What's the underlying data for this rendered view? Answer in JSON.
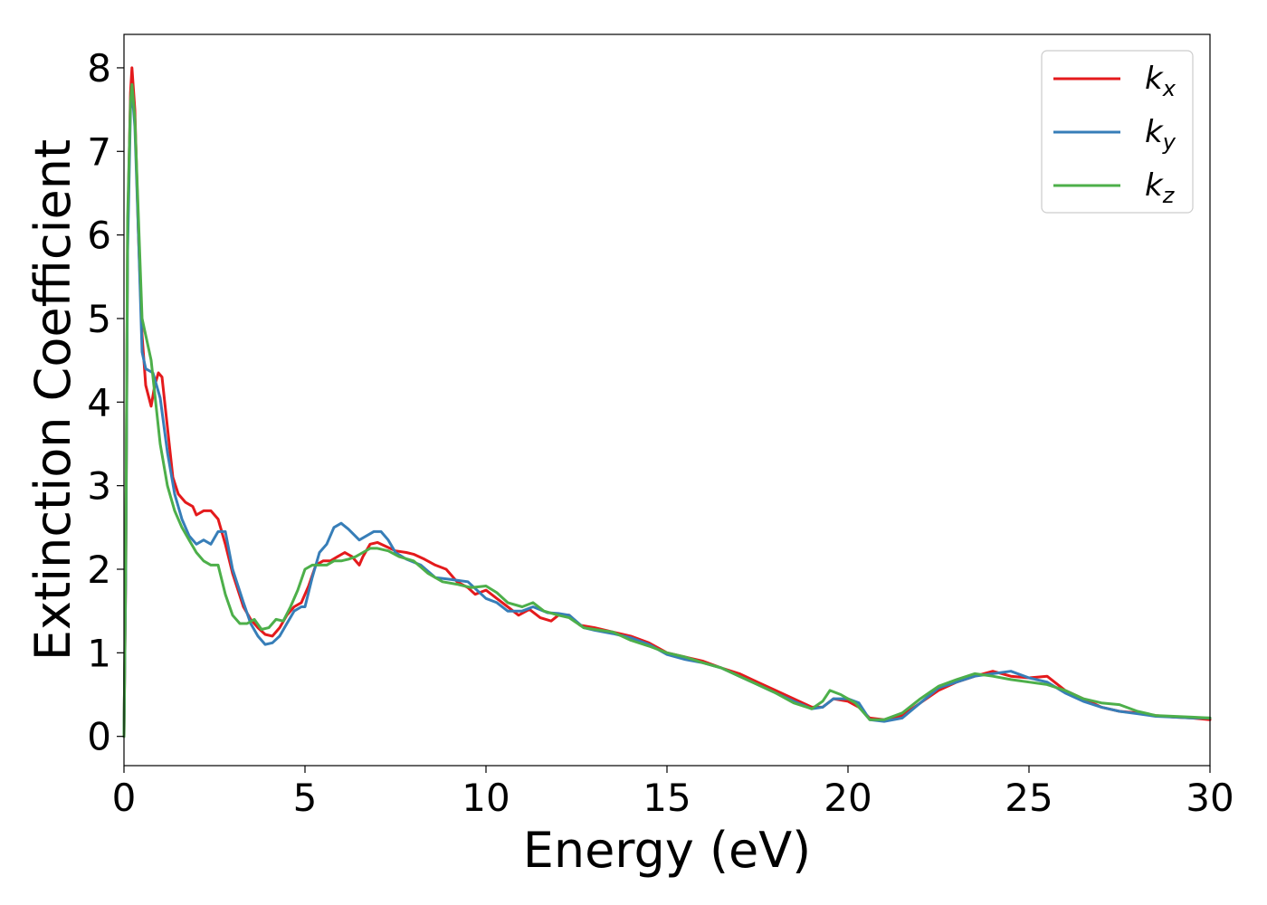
{
  "chart_data": {
    "type": "line",
    "xlabel": "Energy (eV)",
    "ylabel": "Extinction Coefficient",
    "xlim": [
      0,
      30
    ],
    "ylim": [
      -0.35,
      8.4
    ],
    "xticks": [
      "0",
      "5",
      "10",
      "15",
      "20",
      "25",
      "30"
    ],
    "yticks": [
      "0",
      "1",
      "2",
      "3",
      "4",
      "5",
      "6",
      "7",
      "8"
    ],
    "grid": false,
    "legend_position": "top-right",
    "series": [
      {
        "name": "k_x",
        "legend_main": "k",
        "legend_sub": "x",
        "color": "#e41a1c",
        "points": [
          [
            0,
            0
          ],
          [
            0.05,
            2.0
          ],
          [
            0.1,
            6.0
          ],
          [
            0.18,
            7.7
          ],
          [
            0.22,
            8.0
          ],
          [
            0.3,
            7.5
          ],
          [
            0.4,
            6.0
          ],
          [
            0.5,
            4.8
          ],
          [
            0.6,
            4.2
          ],
          [
            0.75,
            3.95
          ],
          [
            0.85,
            4.2
          ],
          [
            0.95,
            4.35
          ],
          [
            1.05,
            4.3
          ],
          [
            1.2,
            3.7
          ],
          [
            1.35,
            3.1
          ],
          [
            1.5,
            2.9
          ],
          [
            1.7,
            2.8
          ],
          [
            1.9,
            2.75
          ],
          [
            2.0,
            2.65
          ],
          [
            2.2,
            2.7
          ],
          [
            2.4,
            2.7
          ],
          [
            2.6,
            2.6
          ],
          [
            2.8,
            2.3
          ],
          [
            3.0,
            1.95
          ],
          [
            3.3,
            1.55
          ],
          [
            3.5,
            1.4
          ],
          [
            3.7,
            1.3
          ],
          [
            3.9,
            1.22
          ],
          [
            4.1,
            1.2
          ],
          [
            4.3,
            1.3
          ],
          [
            4.5,
            1.45
          ],
          [
            4.7,
            1.55
          ],
          [
            4.9,
            1.6
          ],
          [
            5.1,
            1.8
          ],
          [
            5.3,
            2.05
          ],
          [
            5.5,
            2.1
          ],
          [
            5.7,
            2.1
          ],
          [
            5.9,
            2.15
          ],
          [
            6.1,
            2.2
          ],
          [
            6.3,
            2.15
          ],
          [
            6.5,
            2.05
          ],
          [
            6.6,
            2.15
          ],
          [
            6.8,
            2.3
          ],
          [
            7.0,
            2.32
          ],
          [
            7.2,
            2.28
          ],
          [
            7.5,
            2.22
          ],
          [
            7.8,
            2.2
          ],
          [
            8.0,
            2.18
          ],
          [
            8.3,
            2.12
          ],
          [
            8.6,
            2.05
          ],
          [
            8.9,
            2.0
          ],
          [
            9.2,
            1.85
          ],
          [
            9.5,
            1.78
          ],
          [
            9.7,
            1.7
          ],
          [
            10.0,
            1.75
          ],
          [
            10.3,
            1.65
          ],
          [
            10.6,
            1.55
          ],
          [
            10.9,
            1.45
          ],
          [
            11.2,
            1.52
          ],
          [
            11.5,
            1.42
          ],
          [
            11.8,
            1.38
          ],
          [
            12.0,
            1.45
          ],
          [
            12.3,
            1.45
          ],
          [
            12.6,
            1.33
          ],
          [
            13.0,
            1.3
          ],
          [
            13.5,
            1.25
          ],
          [
            14.0,
            1.2
          ],
          [
            14.5,
            1.12
          ],
          [
            15.0,
            1.0
          ],
          [
            15.5,
            0.95
          ],
          [
            16.0,
            0.9
          ],
          [
            16.5,
            0.82
          ],
          [
            17.0,
            0.75
          ],
          [
            17.5,
            0.65
          ],
          [
            18.0,
            0.55
          ],
          [
            18.5,
            0.45
          ],
          [
            19.0,
            0.35
          ],
          [
            19.3,
            0.35
          ],
          [
            19.6,
            0.45
          ],
          [
            20.0,
            0.42
          ],
          [
            20.3,
            0.35
          ],
          [
            20.6,
            0.22
          ],
          [
            21.0,
            0.2
          ],
          [
            21.5,
            0.25
          ],
          [
            22.0,
            0.4
          ],
          [
            22.5,
            0.55
          ],
          [
            23.0,
            0.65
          ],
          [
            23.5,
            0.72
          ],
          [
            24.0,
            0.78
          ],
          [
            24.5,
            0.72
          ],
          [
            25.0,
            0.7
          ],
          [
            25.5,
            0.72
          ],
          [
            26.0,
            0.55
          ],
          [
            26.5,
            0.45
          ],
          [
            27.0,
            0.35
          ],
          [
            27.5,
            0.3
          ],
          [
            28.0,
            0.28
          ],
          [
            28.5,
            0.25
          ],
          [
            29.0,
            0.23
          ],
          [
            29.5,
            0.22
          ],
          [
            30.0,
            0.2
          ]
        ]
      },
      {
        "name": "k_y",
        "legend_main": "k",
        "legend_sub": "y",
        "color": "#377eb8",
        "points": [
          [
            0,
            0
          ],
          [
            0.05,
            2.0
          ],
          [
            0.1,
            5.8
          ],
          [
            0.18,
            7.5
          ],
          [
            0.22,
            7.75
          ],
          [
            0.3,
            7.3
          ],
          [
            0.4,
            6.0
          ],
          [
            0.5,
            4.6
          ],
          [
            0.6,
            4.4
          ],
          [
            0.8,
            4.35
          ],
          [
            1.0,
            4.05
          ],
          [
            1.2,
            3.4
          ],
          [
            1.4,
            2.9
          ],
          [
            1.6,
            2.6
          ],
          [
            1.8,
            2.4
          ],
          [
            2.0,
            2.3
          ],
          [
            2.2,
            2.35
          ],
          [
            2.4,
            2.3
          ],
          [
            2.6,
            2.45
          ],
          [
            2.8,
            2.45
          ],
          [
            3.0,
            2.0
          ],
          [
            3.3,
            1.6
          ],
          [
            3.5,
            1.35
          ],
          [
            3.7,
            1.2
          ],
          [
            3.9,
            1.1
          ],
          [
            4.1,
            1.12
          ],
          [
            4.3,
            1.2
          ],
          [
            4.5,
            1.35
          ],
          [
            4.7,
            1.5
          ],
          [
            4.9,
            1.55
          ],
          [
            5.0,
            1.55
          ],
          [
            5.2,
            1.9
          ],
          [
            5.4,
            2.2
          ],
          [
            5.6,
            2.3
          ],
          [
            5.8,
            2.5
          ],
          [
            6.0,
            2.55
          ],
          [
            6.2,
            2.48
          ],
          [
            6.5,
            2.35
          ],
          [
            6.7,
            2.4
          ],
          [
            6.9,
            2.45
          ],
          [
            7.1,
            2.45
          ],
          [
            7.3,
            2.35
          ],
          [
            7.5,
            2.2
          ],
          [
            7.8,
            2.12
          ],
          [
            8.2,
            2.05
          ],
          [
            8.6,
            1.9
          ],
          [
            9.0,
            1.88
          ],
          [
            9.5,
            1.85
          ],
          [
            10.0,
            1.65
          ],
          [
            10.3,
            1.6
          ],
          [
            10.6,
            1.5
          ],
          [
            11.0,
            1.5
          ],
          [
            11.3,
            1.55
          ],
          [
            11.7,
            1.48
          ],
          [
            12.0,
            1.47
          ],
          [
            12.3,
            1.45
          ],
          [
            12.7,
            1.3
          ],
          [
            13.0,
            1.27
          ],
          [
            13.5,
            1.23
          ],
          [
            14.0,
            1.18
          ],
          [
            14.5,
            1.1
          ],
          [
            15.0,
            0.98
          ],
          [
            15.5,
            0.92
          ],
          [
            16.0,
            0.88
          ],
          [
            16.5,
            0.82
          ],
          [
            17.0,
            0.72
          ],
          [
            17.5,
            0.62
          ],
          [
            18.0,
            0.52
          ],
          [
            18.5,
            0.42
          ],
          [
            19.0,
            0.33
          ],
          [
            19.3,
            0.35
          ],
          [
            19.6,
            0.45
          ],
          [
            20.0,
            0.45
          ],
          [
            20.3,
            0.4
          ],
          [
            20.6,
            0.2
          ],
          [
            21.0,
            0.18
          ],
          [
            21.5,
            0.22
          ],
          [
            22.0,
            0.4
          ],
          [
            22.5,
            0.58
          ],
          [
            23.0,
            0.65
          ],
          [
            23.5,
            0.72
          ],
          [
            24.0,
            0.75
          ],
          [
            24.5,
            0.78
          ],
          [
            25.0,
            0.7
          ],
          [
            25.5,
            0.65
          ],
          [
            26.0,
            0.52
          ],
          [
            26.5,
            0.42
          ],
          [
            27.0,
            0.35
          ],
          [
            27.5,
            0.3
          ],
          [
            28.0,
            0.27
          ],
          [
            28.5,
            0.24
          ],
          [
            29.0,
            0.23
          ],
          [
            29.5,
            0.22
          ],
          [
            30.0,
            0.22
          ]
        ]
      },
      {
        "name": "k_z",
        "legend_main": "k",
        "legend_sub": "z",
        "color": "#4daf4a",
        "points": [
          [
            0,
            0
          ],
          [
            0.05,
            2.2
          ],
          [
            0.1,
            6.2
          ],
          [
            0.18,
            7.6
          ],
          [
            0.22,
            7.8
          ],
          [
            0.3,
            7.4
          ],
          [
            0.4,
            6.2
          ],
          [
            0.5,
            5.0
          ],
          [
            0.6,
            4.8
          ],
          [
            0.75,
            4.5
          ],
          [
            0.9,
            3.9
          ],
          [
            1.0,
            3.5
          ],
          [
            1.2,
            3.0
          ],
          [
            1.4,
            2.7
          ],
          [
            1.6,
            2.5
          ],
          [
            1.8,
            2.35
          ],
          [
            2.0,
            2.2
          ],
          [
            2.2,
            2.1
          ],
          [
            2.4,
            2.05
          ],
          [
            2.6,
            2.05
          ],
          [
            2.8,
            1.7
          ],
          [
            3.0,
            1.45
          ],
          [
            3.2,
            1.35
          ],
          [
            3.4,
            1.35
          ],
          [
            3.6,
            1.4
          ],
          [
            3.8,
            1.28
          ],
          [
            4.0,
            1.3
          ],
          [
            4.2,
            1.4
          ],
          [
            4.4,
            1.38
          ],
          [
            4.6,
            1.55
          ],
          [
            4.8,
            1.75
          ],
          [
            5.0,
            2.0
          ],
          [
            5.2,
            2.05
          ],
          [
            5.4,
            2.05
          ],
          [
            5.6,
            2.05
          ],
          [
            5.8,
            2.1
          ],
          [
            6.0,
            2.1
          ],
          [
            6.2,
            2.12
          ],
          [
            6.4,
            2.15
          ],
          [
            6.6,
            2.2
          ],
          [
            6.8,
            2.25
          ],
          [
            7.0,
            2.25
          ],
          [
            7.3,
            2.22
          ],
          [
            7.6,
            2.15
          ],
          [
            8.0,
            2.1
          ],
          [
            8.4,
            1.95
          ],
          [
            8.8,
            1.85
          ],
          [
            9.2,
            1.82
          ],
          [
            9.6,
            1.78
          ],
          [
            10.0,
            1.8
          ],
          [
            10.3,
            1.72
          ],
          [
            10.6,
            1.6
          ],
          [
            11.0,
            1.55
          ],
          [
            11.3,
            1.6
          ],
          [
            11.6,
            1.5
          ],
          [
            12.0,
            1.45
          ],
          [
            12.3,
            1.42
          ],
          [
            12.7,
            1.3
          ],
          [
            13.0,
            1.28
          ],
          [
            13.5,
            1.25
          ],
          [
            14.0,
            1.15
          ],
          [
            14.5,
            1.08
          ],
          [
            15.0,
            1.0
          ],
          [
            15.5,
            0.95
          ],
          [
            16.0,
            0.88
          ],
          [
            16.5,
            0.82
          ],
          [
            17.0,
            0.72
          ],
          [
            17.5,
            0.62
          ],
          [
            18.0,
            0.52
          ],
          [
            18.5,
            0.4
          ],
          [
            19.0,
            0.33
          ],
          [
            19.3,
            0.42
          ],
          [
            19.5,
            0.55
          ],
          [
            19.8,
            0.5
          ],
          [
            20.2,
            0.4
          ],
          [
            20.6,
            0.2
          ],
          [
            21.0,
            0.2
          ],
          [
            21.5,
            0.28
          ],
          [
            22.0,
            0.45
          ],
          [
            22.5,
            0.6
          ],
          [
            23.0,
            0.68
          ],
          [
            23.5,
            0.75
          ],
          [
            24.0,
            0.72
          ],
          [
            24.5,
            0.68
          ],
          [
            25.0,
            0.65
          ],
          [
            25.5,
            0.62
          ],
          [
            26.0,
            0.55
          ],
          [
            26.5,
            0.45
          ],
          [
            27.0,
            0.4
          ],
          [
            27.5,
            0.38
          ],
          [
            28.0,
            0.3
          ],
          [
            28.5,
            0.25
          ],
          [
            29.0,
            0.24
          ],
          [
            29.5,
            0.23
          ],
          [
            30.0,
            0.22
          ]
        ]
      }
    ]
  }
}
